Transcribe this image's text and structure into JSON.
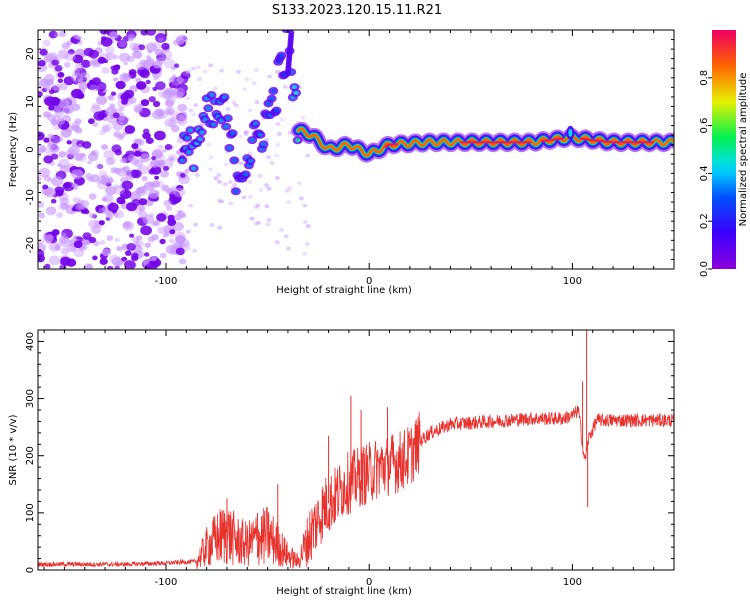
{
  "title": "S133.2023.120.15.11.R21",
  "chart_data": [
    {
      "type": "heatmap",
      "xlabel": "Height of straight line (km)",
      "ylabel": "Frequency (Hz)",
      "xlim": [
        -163,
        150
      ],
      "ylim": [
        -25,
        25
      ],
      "xticks": [
        -100,
        0,
        100
      ],
      "yticks": [
        -20,
        -10,
        0,
        10,
        20
      ],
      "colorbar": {
        "label": "Normalized spectral amplitude",
        "range": [
          0,
          1
        ],
        "ticks": [
          "0.0",
          "0.2",
          "0.4",
          "0.6",
          "0.8"
        ],
        "colormap": "rainbow"
      },
      "ridge": [
        {
          "x": -90,
          "y": -2,
          "amp": 0.4
        },
        {
          "x": -85,
          "y": 2,
          "amp": 0.45
        },
        {
          "x": -80,
          "y": 6,
          "amp": 0.4
        },
        {
          "x": -72,
          "y": 8,
          "amp": 0.4
        },
        {
          "x": -65,
          "y": -5,
          "amp": 0.35
        },
        {
          "x": -55,
          "y": 2,
          "amp": 0.4
        },
        {
          "x": -48,
          "y": 9,
          "amp": 0.35
        },
        {
          "x": -40,
          "y": 22,
          "amp": 0.3
        },
        {
          "x": -35,
          "y": 4,
          "amp": 0.55
        },
        {
          "x": -28,
          "y": 3,
          "amp": 0.55
        },
        {
          "x": -20,
          "y": 0,
          "amp": 0.55
        },
        {
          "x": -10,
          "y": 1,
          "amp": 0.6
        },
        {
          "x": 0,
          "y": -1,
          "amp": 0.6
        },
        {
          "x": 10,
          "y": 1,
          "amp": 0.9
        },
        {
          "x": 30,
          "y": 1.5,
          "amp": 0.75
        },
        {
          "x": 50,
          "y": 1.5,
          "amp": 0.85
        },
        {
          "x": 80,
          "y": 1.5,
          "amp": 0.8
        },
        {
          "x": 99,
          "y": 2.5,
          "amp": 0.4
        },
        {
          "x": 120,
          "y": 1.5,
          "amp": 0.85
        },
        {
          "x": 150,
          "y": 1.5,
          "amp": 0.75
        }
      ]
    },
    {
      "type": "line",
      "xlabel": "Height of straight line (km)",
      "ylabel": "SNR (10 * v/v)",
      "xlim": [
        -163,
        150
      ],
      "ylim": [
        0,
        420
      ],
      "xticks": [
        -100,
        0,
        100
      ],
      "yticks": [
        0,
        100,
        200,
        300,
        400
      ],
      "color": "#e8322e",
      "series": [
        {
          "x": [
            -163,
            -140,
            -120,
            -100,
            -85,
            -80,
            -75,
            -70,
            -65,
            -60,
            -55,
            -50,
            -45,
            -40,
            -35,
            -28,
            -22,
            -16,
            -12,
            -8,
            -4,
            0,
            5,
            10,
            15,
            20,
            25,
            30,
            40,
            60,
            80,
            95,
            100,
            103,
            106,
            108,
            112,
            130,
            150
          ],
          "y": [
            10,
            10,
            10,
            12,
            15,
            40,
            55,
            65,
            50,
            45,
            55,
            60,
            45,
            25,
            15,
            70,
            110,
            130,
            150,
            155,
            165,
            170,
            180,
            185,
            190,
            200,
            225,
            240,
            255,
            260,
            265,
            265,
            270,
            280,
            190,
            230,
            262,
            262,
            262
          ],
          "spikes": [
            {
              "x": -70,
              "y": 125
            },
            {
              "x": -55,
              "y": 100
            },
            {
              "x": -45,
              "y": 150
            },
            {
              "x": -20,
              "y": 235
            },
            {
              "x": -9,
              "y": 305
            },
            {
              "x": -4,
              "y": 280
            },
            {
              "x": 9,
              "y": 285
            },
            {
              "x": 105,
              "y": 330
            },
            {
              "x": 107,
              "y": 420
            },
            {
              "x": 107.5,
              "y": 110
            }
          ]
        }
      ]
    }
  ]
}
